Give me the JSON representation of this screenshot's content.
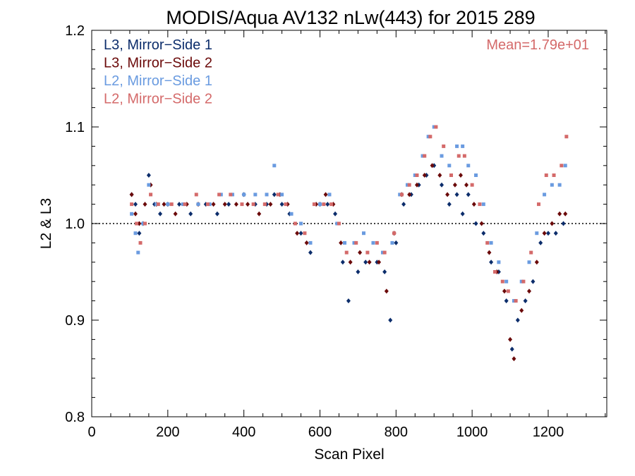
{
  "chart_data": {
    "type": "scatter",
    "title": "MODIS/Aqua AV132 nLw(443) for 2015 289",
    "xlabel": "Scan Pixel",
    "ylabel": "L2 & L3",
    "xlim": [
      0,
      1354
    ],
    "ylim": [
      0.8,
      1.2
    ],
    "xticks": [
      0,
      200,
      400,
      600,
      800,
      1000,
      1200
    ],
    "xtick_labels": [
      "0",
      "200",
      "400",
      "600",
      "800",
      "1000",
      "1200"
    ],
    "yticks": [
      0.8,
      0.9,
      1.0,
      1.1,
      1.2
    ],
    "ytick_labels": [
      "0.8",
      "0.9",
      "1.0",
      "1.1",
      "1.2"
    ],
    "reference_line": 1.0,
    "annotation": "Mean=1.79e+01",
    "annotation_color": "#d46a6a",
    "legend_position": "top-left",
    "series": [
      {
        "name": "L3, Mirror−Side 1",
        "color": "#0c2d6b",
        "marker": "diamond",
        "points": [
          [
            105,
            1.03
          ],
          [
            115,
            1.02
          ],
          [
            125,
            0.99
          ],
          [
            135,
            1.0
          ],
          [
            150,
            1.05
          ],
          [
            165,
            1.02
          ],
          [
            180,
            1.01
          ],
          [
            200,
            1.02
          ],
          [
            230,
            1.02
          ],
          [
            260,
            1.01
          ],
          [
            300,
            1.02
          ],
          [
            330,
            1.01
          ],
          [
            360,
            1.02
          ],
          [
            400,
            1.03
          ],
          [
            430,
            1.02
          ],
          [
            460,
            1.02
          ],
          [
            480,
            1.03
          ],
          [
            500,
            1.02
          ],
          [
            520,
            1.01
          ],
          [
            550,
            0.99
          ],
          [
            575,
            0.97
          ],
          [
            600,
            1.02
          ],
          [
            620,
            1.02
          ],
          [
            640,
            1.01
          ],
          [
            660,
            0.96
          ],
          [
            675,
            0.92
          ],
          [
            700,
            0.95
          ],
          [
            720,
            0.96
          ],
          [
            750,
            0.96
          ],
          [
            770,
            0.95
          ],
          [
            785,
            0.9
          ],
          [
            800,
            0.98
          ],
          [
            820,
            1.02
          ],
          [
            840,
            1.03
          ],
          [
            860,
            1.04
          ],
          [
            880,
            1.05
          ],
          [
            900,
            1.06
          ],
          [
            920,
            1.04
          ],
          [
            940,
            1.02
          ],
          [
            960,
            1.03
          ],
          [
            975,
            1.01
          ],
          [
            990,
            1.03
          ],
          [
            1010,
            1.0
          ],
          [
            1030,
            0.99
          ],
          [
            1050,
            0.96
          ],
          [
            1070,
            0.95
          ],
          [
            1090,
            0.92
          ],
          [
            1105,
            0.87
          ],
          [
            1120,
            0.9
          ],
          [
            1140,
            0.92
          ],
          [
            1160,
            0.94
          ],
          [
            1180,
            0.98
          ],
          [
            1200,
            0.99
          ],
          [
            1220,
            0.99
          ],
          [
            1240,
            1.0
          ]
        ]
      },
      {
        "name": "L3, Mirror−Side 2",
        "color": "#6b0a0a",
        "marker": "diamond",
        "points": [
          [
            105,
            1.03
          ],
          [
            115,
            1.01
          ],
          [
            125,
            1.0
          ],
          [
            140,
            1.02
          ],
          [
            155,
            1.04
          ],
          [
            170,
            1.02
          ],
          [
            190,
            1.02
          ],
          [
            220,
            1.01
          ],
          [
            250,
            1.02
          ],
          [
            280,
            1.02
          ],
          [
            320,
            1.02
          ],
          [
            350,
            1.02
          ],
          [
            380,
            1.02
          ],
          [
            410,
            1.02
          ],
          [
            440,
            1.01
          ],
          [
            470,
            1.02
          ],
          [
            495,
            1.03
          ],
          [
            515,
            1.02
          ],
          [
            540,
            0.99
          ],
          [
            565,
            0.98
          ],
          [
            590,
            1.02
          ],
          [
            615,
            1.03
          ],
          [
            635,
            1.02
          ],
          [
            655,
            0.98
          ],
          [
            680,
            0.96
          ],
          [
            705,
            0.97
          ],
          [
            730,
            0.96
          ],
          [
            755,
            0.96
          ],
          [
            775,
            0.93
          ],
          [
            795,
            0.99
          ],
          [
            815,
            1.03
          ],
          [
            835,
            1.03
          ],
          [
            855,
            1.04
          ],
          [
            875,
            1.05
          ],
          [
            895,
            1.06
          ],
          [
            915,
            1.05
          ],
          [
            935,
            1.03
          ],
          [
            955,
            1.04
          ],
          [
            970,
            1.05
          ],
          [
            985,
            1.04
          ],
          [
            1005,
            1.02
          ],
          [
            1025,
            1.0
          ],
          [
            1045,
            0.97
          ],
          [
            1065,
            0.95
          ],
          [
            1085,
            0.93
          ],
          [
            1100,
            0.88
          ],
          [
            1110,
            0.86
          ],
          [
            1130,
            0.91
          ],
          [
            1150,
            0.93
          ],
          [
            1170,
            0.96
          ],
          [
            1190,
            0.99
          ],
          [
            1210,
            1.0
          ],
          [
            1230,
            1.01
          ],
          [
            1245,
            1.01
          ]
        ]
      },
      {
        "name": "L2, Mirror−Side 1",
        "color": "#6a9be0",
        "marker": "square",
        "points": [
          [
            105,
            1.01
          ],
          [
            115,
            0.99
          ],
          [
            122,
            0.97
          ],
          [
            135,
            1.0
          ],
          [
            150,
            1.04
          ],
          [
            170,
            1.02
          ],
          [
            200,
            1.02
          ],
          [
            240,
            1.02
          ],
          [
            280,
            1.02
          ],
          [
            310,
            1.02
          ],
          [
            340,
            1.03
          ],
          [
            370,
            1.03
          ],
          [
            400,
            1.03
          ],
          [
            430,
            1.03
          ],
          [
            460,
            1.03
          ],
          [
            480,
            1.06
          ],
          [
            500,
            1.03
          ],
          [
            525,
            1.01
          ],
          [
            550,
            1.0
          ],
          [
            575,
            0.98
          ],
          [
            600,
            1.02
          ],
          [
            625,
            1.03
          ],
          [
            645,
            1.0
          ],
          [
            665,
            0.98
          ],
          [
            690,
            0.98
          ],
          [
            715,
            0.99
          ],
          [
            740,
            0.98
          ],
          [
            765,
            0.97
          ],
          [
            790,
            0.98
          ],
          [
            810,
            1.03
          ],
          [
            830,
            1.04
          ],
          [
            850,
            1.05
          ],
          [
            870,
            1.07
          ],
          [
            885,
            1.09
          ],
          [
            900,
            1.1
          ],
          [
            920,
            1.07
          ],
          [
            940,
            1.06
          ],
          [
            960,
            1.08
          ],
          [
            975,
            1.08
          ],
          [
            990,
            1.06
          ],
          [
            1010,
            1.05
          ],
          [
            1030,
            1.02
          ],
          [
            1050,
            0.98
          ],
          [
            1070,
            0.96
          ],
          [
            1090,
            0.94
          ],
          [
            1110,
            0.92
          ],
          [
            1130,
            0.94
          ],
          [
            1150,
            0.96
          ],
          [
            1170,
            0.99
          ],
          [
            1190,
            1.03
          ],
          [
            1210,
            1.04
          ],
          [
            1230,
            1.04
          ],
          [
            1245,
            1.06
          ]
        ]
      },
      {
        "name": "L2, Mirror−Side 2",
        "color": "#d46a6a",
        "marker": "square",
        "points": [
          [
            105,
            1.02
          ],
          [
            118,
            1.0
          ],
          [
            128,
            0.98
          ],
          [
            140,
            1.0
          ],
          [
            155,
            1.03
          ],
          [
            175,
            1.02
          ],
          [
            210,
            1.02
          ],
          [
            245,
            1.02
          ],
          [
            275,
            1.03
          ],
          [
            305,
            1.02
          ],
          [
            335,
            1.03
          ],
          [
            365,
            1.03
          ],
          [
            395,
            1.02
          ],
          [
            425,
            1.02
          ],
          [
            455,
            1.02
          ],
          [
            490,
            1.03
          ],
          [
            510,
            1.02
          ],
          [
            535,
            1.0
          ],
          [
            560,
            0.99
          ],
          [
            585,
            1.02
          ],
          [
            610,
            1.02
          ],
          [
            630,
            1.02
          ],
          [
            650,
            1.0
          ],
          [
            670,
            0.97
          ],
          [
            695,
            0.98
          ],
          [
            725,
            0.97
          ],
          [
            750,
            0.98
          ],
          [
            770,
            0.97
          ],
          [
            795,
            0.99
          ],
          [
            815,
            1.03
          ],
          [
            835,
            1.04
          ],
          [
            855,
            1.05
          ],
          [
            875,
            1.07
          ],
          [
            890,
            1.09
          ],
          [
            905,
            1.1
          ],
          [
            925,
            1.08
          ],
          [
            945,
            1.05
          ],
          [
            965,
            1.07
          ],
          [
            980,
            1.07
          ],
          [
            1000,
            1.04
          ],
          [
            1020,
            1.02
          ],
          [
            1040,
            0.98
          ],
          [
            1060,
            0.95
          ],
          [
            1080,
            0.94
          ],
          [
            1095,
            0.93
          ],
          [
            1115,
            0.92
          ],
          [
            1135,
            0.94
          ],
          [
            1155,
            0.97
          ],
          [
            1175,
            1.02
          ],
          [
            1195,
            1.05
          ],
          [
            1215,
            1.05
          ],
          [
            1235,
            1.06
          ],
          [
            1248,
            1.09
          ]
        ]
      }
    ]
  }
}
